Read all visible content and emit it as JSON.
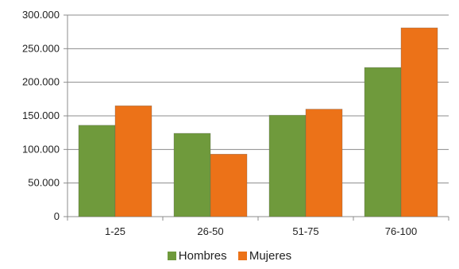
{
  "chart_data": {
    "type": "bar",
    "categories": [
      "1-25",
      "26-50",
      "51-75",
      "76-100"
    ],
    "series": [
      {
        "name": "Hombres",
        "values": [
          136000,
          124000,
          151000,
          222000
        ],
        "color": "#6f9a3c"
      },
      {
        "name": "Mujeres",
        "values": [
          165000,
          93000,
          160000,
          281000
        ],
        "color": "#ec7218"
      }
    ],
    "ylim": [
      0,
      300000
    ],
    "yticks": [
      0,
      50000,
      100000,
      150000,
      200000,
      250000,
      300000
    ],
    "ytick_labels": [
      "0",
      "50.000",
      "100.000",
      "150.000",
      "200.000",
      "250.000",
      "300.000"
    ],
    "grid": true,
    "legend": "bottom",
    "title": "",
    "xlabel": "",
    "ylabel": ""
  }
}
